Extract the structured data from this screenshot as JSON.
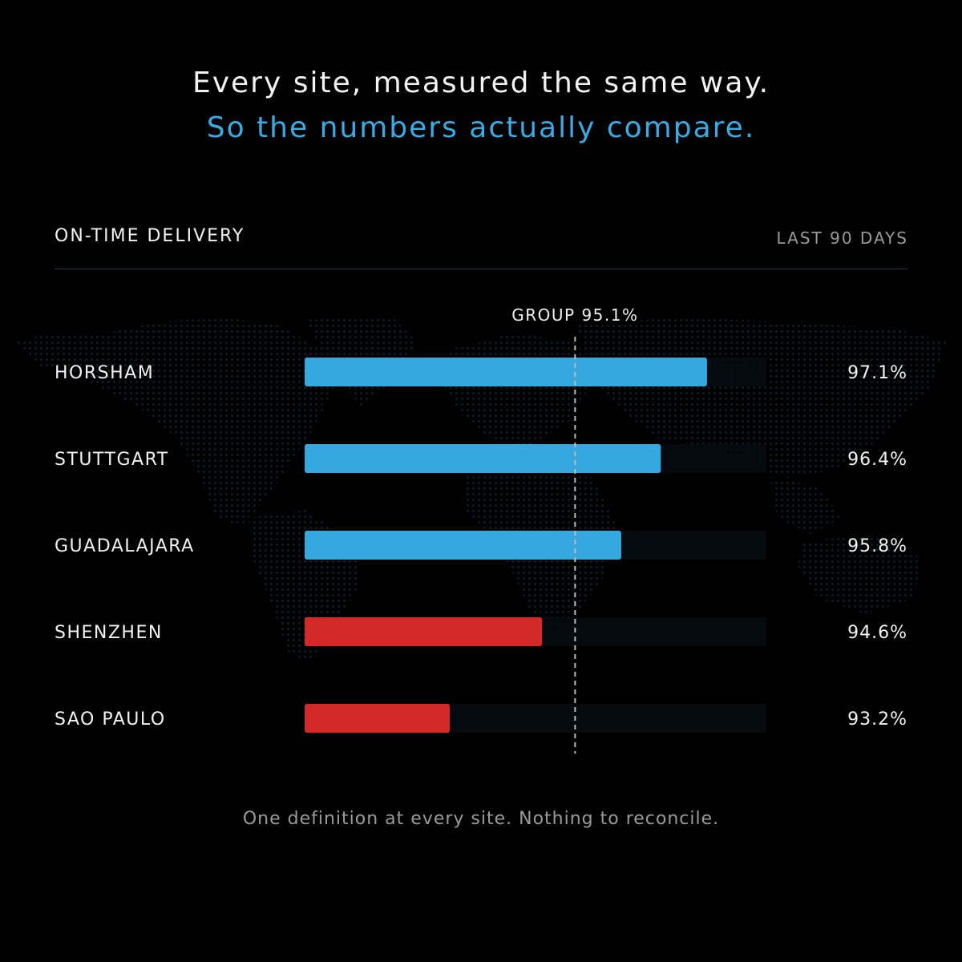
{
  "header": {
    "line1": "Every site, measured the same way.",
    "line2": "So the numbers actually compare."
  },
  "section": {
    "title": "ON-TIME DELIVERY",
    "period": "LAST 90 DAYS"
  },
  "footer": {
    "text": "One definition at every site. Nothing to reconcile."
  },
  "colors": {
    "above": "#37a7df",
    "below": "#d22b27",
    "track": "#060c12",
    "reference": "#bbbbbb"
  },
  "chart_data": {
    "type": "bar",
    "orientation": "horizontal",
    "title": "ON-TIME DELIVERY",
    "xlim": [
      91.0,
      98.0
    ],
    "categories": [
      "HORSHAM",
      "STUTTGART",
      "GUADALAJARA",
      "SHENZHEN",
      "SAO PAULO"
    ],
    "values": [
      97.1,
      96.4,
      95.8,
      94.6,
      93.2
    ],
    "value_labels": [
      "97.1%",
      "96.4%",
      "95.8%",
      "94.6%",
      "93.2%"
    ],
    "reference": {
      "label": "GROUP 95.1%",
      "value": 95.1
    },
    "grid": false,
    "legend": "none"
  }
}
